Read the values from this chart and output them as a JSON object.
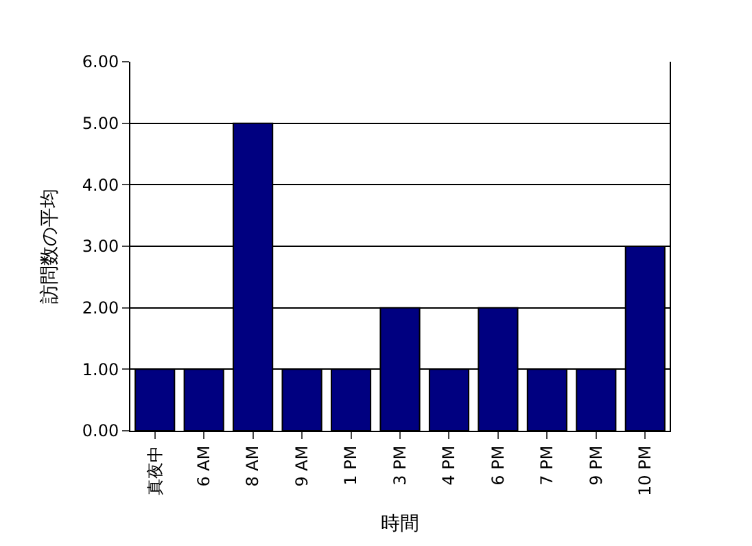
{
  "chart_data": {
    "type": "bar",
    "categories": [
      "真夜中",
      "6 AM",
      "8 AM",
      "9 AM",
      "1 PM",
      "3 PM",
      "4 PM",
      "6 PM",
      "7 PM",
      "9 PM",
      "10 PM"
    ],
    "values": [
      1,
      1,
      5,
      1,
      1,
      2,
      1,
      2,
      1,
      1,
      3
    ],
    "color": "#000080",
    "xlabel": "時間",
    "ylabel": "訪問数の平均",
    "ylim": [
      0,
      6
    ],
    "yticks": [
      {
        "value": 0,
        "label": "0.00"
      },
      {
        "value": 1,
        "label": "1.00"
      },
      {
        "value": 2,
        "label": "2.00"
      },
      {
        "value": 3,
        "label": "3.00"
      },
      {
        "value": 4,
        "label": "4.00"
      },
      {
        "value": 5,
        "label": "5.00"
      },
      {
        "value": 6,
        "label": "6.00"
      }
    ],
    "grid": "y"
  }
}
